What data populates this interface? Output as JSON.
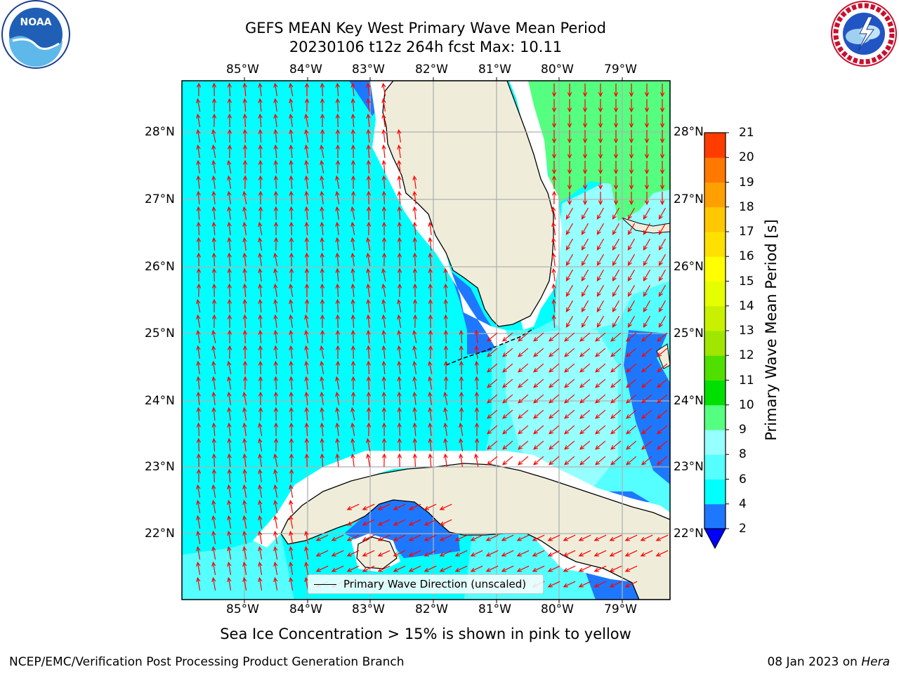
{
  "title": {
    "line1": "GEFS MEAN Key West Primary Wave Mean Period",
    "line2": "20230106 t12z 264h fcst   Max: 10.11"
  },
  "map": {
    "lon_labels": [
      "85°W",
      "84°W",
      "83°W",
      "82°W",
      "81°W",
      "80°W",
      "79°W"
    ],
    "lat_labels": [
      "28°N",
      "27°N",
      "26°N",
      "25°N",
      "24°N",
      "23°N",
      "22°N"
    ],
    "colors": {
      "land": "#efedda",
      "period_2_4": "#1e78ff",
      "period_4_6": "#00ffff",
      "period_6_8": "#55ffff",
      "period_8_9": "#96ffff",
      "period_9_10": "#55ff80",
      "arrows": "#ff0000"
    },
    "legend_label": "Primary Wave Direction (unscaled)"
  },
  "colorbar": {
    "label": "Primary Wave Mean Period [s]",
    "ticks": [
      "2",
      "4",
      "6",
      "8",
      "9",
      "10",
      "11",
      "12",
      "13",
      "14",
      "15",
      "16",
      "17",
      "18",
      "19",
      "20",
      "21"
    ],
    "colors": [
      "#1e78ff",
      "#00ffff",
      "#55ffff",
      "#96ffff",
      "#55ff80",
      "#00e000",
      "#50e000",
      "#a0e600",
      "#c8f000",
      "#e6ff00",
      "#ffff00",
      "#ffe000",
      "#ffc800",
      "#ffa000",
      "#ff7800",
      "#ff3c00",
      "#ff0000"
    ],
    "extend_color": "#0000ff"
  },
  "ice_note": "Sea Ice Concentration > 15% is shown in pink to yellow",
  "footer": {
    "left": "NCEP/EMC/Verification Post Processing Product Generation Branch",
    "right_date": "08 Jan 2023 on ",
    "right_host": "Hera"
  },
  "logos": {
    "noaa": "NOAA",
    "nws": "NATIONAL WEATHER SERVICE"
  }
}
